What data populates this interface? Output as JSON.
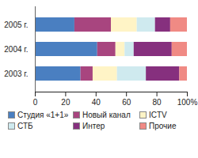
{
  "chart_data": {
    "type": "bar",
    "orientation": "horizontal",
    "stacked": true,
    "categories": [
      "2005 г.",
      "2004 г.",
      "2003 г."
    ],
    "series": [
      {
        "name": "Студия «1+1»",
        "color": "#4a7fc1",
        "values": [
          26,
          41,
          30
        ]
      },
      {
        "name": "Новый канал",
        "color": "#a8457f",
        "values": [
          24,
          12,
          8
        ]
      },
      {
        "name": "ICTV",
        "color": "#fff4c6",
        "values": [
          17,
          6,
          16
        ]
      },
      {
        "name": "СТБ",
        "color": "#cfeaef",
        "values": [
          12,
          6,
          19
        ]
      },
      {
        "name": "Интер",
        "color": "#86307e",
        "values": [
          10,
          25,
          22
        ]
      },
      {
        "name": "Прочие",
        "color": "#f08a84",
        "values": [
          11,
          10,
          5
        ]
      }
    ],
    "xlim": [
      0,
      100
    ],
    "xticks": [
      0,
      20,
      40,
      60,
      80,
      {
        "value": 100,
        "label": "100%"
      }
    ],
    "grid": false,
    "legend": "bottom"
  }
}
